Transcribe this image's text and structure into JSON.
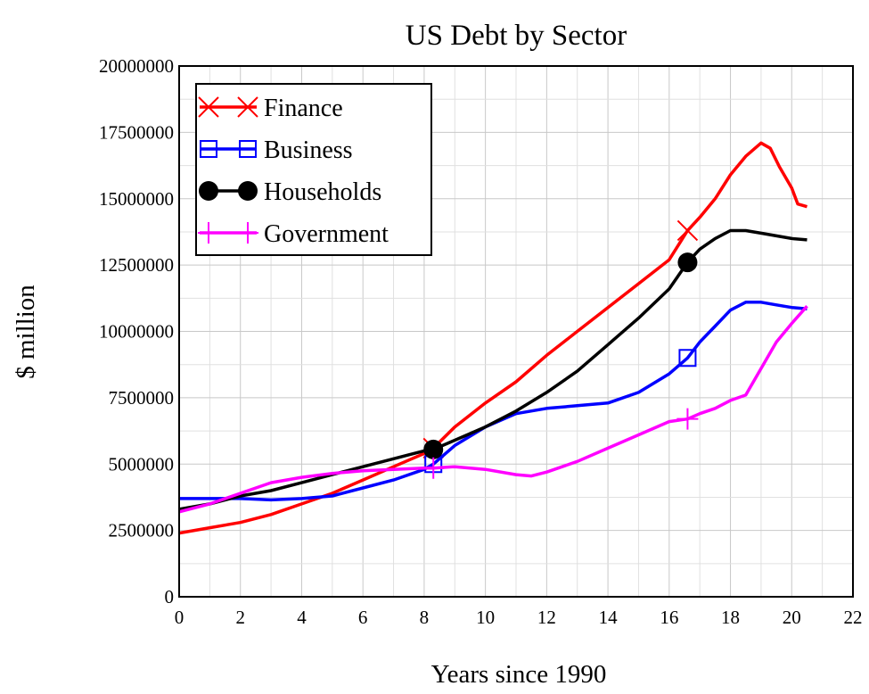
{
  "chart_data": {
    "type": "line",
    "title": "US Debt by Sector",
    "xlabel": "Years since 1990",
    "ylabel": "$ million",
    "xlim": [
      0,
      22
    ],
    "ylim": [
      0,
      20000000
    ],
    "xticks": [
      "0",
      "2",
      "4",
      "6",
      "8",
      "10",
      "12",
      "14",
      "16",
      "18",
      "20",
      "22"
    ],
    "yticks": [
      "0",
      "2500000",
      "5000000",
      "7500000",
      "10000000",
      "12500000",
      "15000000",
      "17500000",
      "20000000"
    ],
    "grid": true,
    "legend_position": "top-left",
    "series": [
      {
        "name": "Finance",
        "color": "#ff0000",
        "marker": "x",
        "marker_x": [
          8.3,
          16.6
        ],
        "x": [
          0,
          0.5,
          1,
          2,
          3,
          4,
          5,
          6,
          7,
          8,
          8.3,
          9,
          10,
          11,
          12,
          13,
          14,
          15,
          16,
          16.6,
          17,
          17.5,
          18,
          18.5,
          19,
          19.3,
          19.6,
          20,
          20.2,
          20.5
        ],
        "y": [
          2400000,
          2500000,
          2600000,
          2800000,
          3100000,
          3500000,
          3900000,
          4400000,
          4900000,
          5400000,
          5600000,
          6400000,
          7300000,
          8100000,
          9100000,
          10000000,
          10900000,
          11800000,
          12700000,
          13800000,
          14300000,
          15000000,
          15900000,
          16600000,
          17100000,
          16900000,
          16200000,
          15400000,
          14800000,
          14700000
        ]
      },
      {
        "name": "Business",
        "color": "#0000ff",
        "marker": "square",
        "marker_x": [
          8.3,
          16.6
        ],
        "x": [
          0,
          1,
          2,
          3,
          4,
          5,
          6,
          7,
          8,
          8.3,
          9,
          10,
          11,
          12,
          13,
          14,
          15,
          16,
          16.6,
          17,
          17.5,
          18,
          18.5,
          19,
          19.5,
          20,
          20.5
        ],
        "y": [
          3700000,
          3700000,
          3700000,
          3650000,
          3700000,
          3800000,
          4100000,
          4400000,
          4800000,
          5000000,
          5700000,
          6400000,
          6900000,
          7100000,
          7200000,
          7300000,
          7700000,
          8400000,
          9000000,
          9600000,
          10200000,
          10800000,
          11100000,
          11100000,
          11000000,
          10900000,
          10850000
        ]
      },
      {
        "name": "Households",
        "color": "#000000",
        "marker": "circle",
        "marker_x": [
          8.3,
          16.6
        ],
        "x": [
          0,
          1,
          2,
          3,
          4,
          5,
          6,
          7,
          8,
          8.3,
          9,
          10,
          11,
          12,
          13,
          14,
          15,
          16,
          16.6,
          17,
          17.5,
          18,
          18.5,
          19,
          19.5,
          20,
          20.5
        ],
        "y": [
          3300000,
          3500000,
          3800000,
          4000000,
          4300000,
          4600000,
          4900000,
          5200000,
          5500000,
          5550000,
          5900000,
          6400000,
          7000000,
          7700000,
          8500000,
          9500000,
          10500000,
          11600000,
          12600000,
          13100000,
          13500000,
          13800000,
          13800000,
          13700000,
          13600000,
          13500000,
          13450000
        ]
      },
      {
        "name": "Government",
        "color": "#ff00ff",
        "marker": "plus",
        "marker_x": [
          8.3,
          16.6
        ],
        "x": [
          0,
          1,
          2,
          3,
          4,
          5,
          6,
          7,
          8,
          8.3,
          9,
          10,
          11,
          11.5,
          12,
          13,
          14,
          15,
          16,
          16.6,
          17,
          17.5,
          18,
          18.5,
          19,
          19.5,
          20,
          20.5
        ],
        "y": [
          3200000,
          3500000,
          3900000,
          4300000,
          4500000,
          4650000,
          4750000,
          4800000,
          4850000,
          4850000,
          4900000,
          4800000,
          4600000,
          4550000,
          4700000,
          5100000,
          5600000,
          6100000,
          6600000,
          6700000,
          6900000,
          7100000,
          7400000,
          7600000,
          8600000,
          9600000,
          10300000,
          10950000
        ]
      }
    ]
  }
}
